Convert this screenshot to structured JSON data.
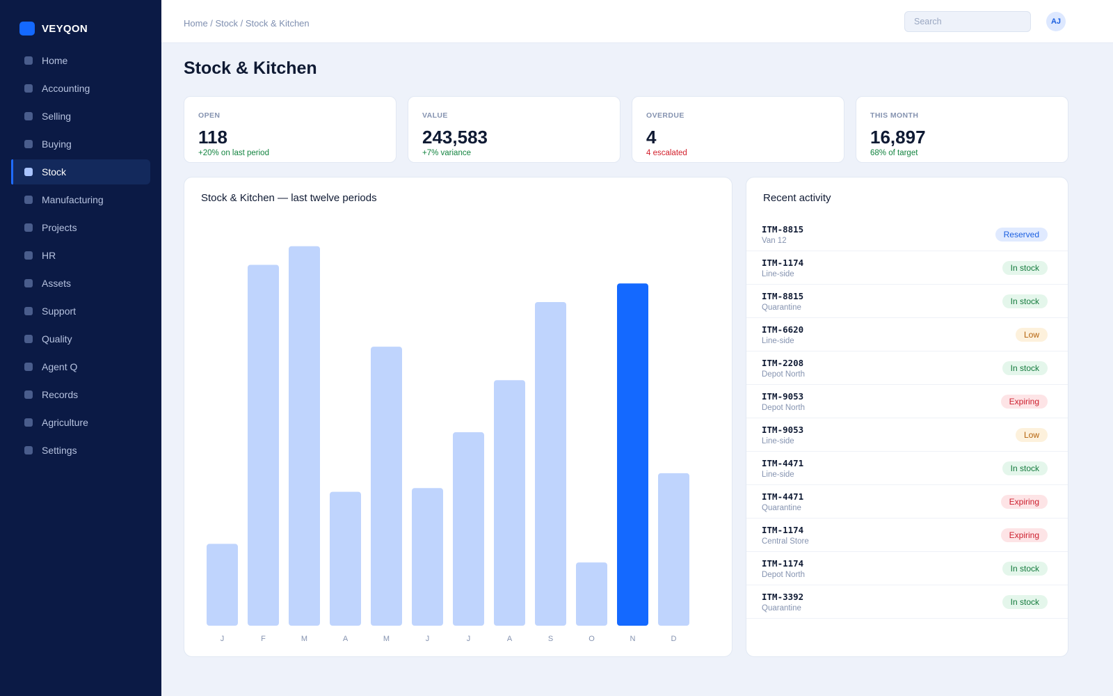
{
  "app": {
    "name": "VEYQON",
    "accent": "#1469ff",
    "sidebar_bg": "#0b1a45"
  },
  "sidebar": {
    "items": [
      {
        "label": "Home",
        "icon": "home-icon",
        "active": false
      },
      {
        "label": "Accounting",
        "icon": "accounting-icon",
        "active": false
      },
      {
        "label": "Selling",
        "icon": "selling-icon",
        "active": false
      },
      {
        "label": "Buying",
        "icon": "buying-icon",
        "active": false
      },
      {
        "label": "Stock",
        "icon": "stock-icon",
        "active": true
      },
      {
        "label": "Manufacturing",
        "icon": "manufacturing-icon",
        "active": false
      },
      {
        "label": "Projects",
        "icon": "projects-icon",
        "active": false
      },
      {
        "label": "HR",
        "icon": "hr-icon",
        "active": false
      },
      {
        "label": "Assets",
        "icon": "assets-icon",
        "active": false
      },
      {
        "label": "Support",
        "icon": "support-icon",
        "active": false
      },
      {
        "label": "Quality",
        "icon": "quality-icon",
        "active": false
      },
      {
        "label": "Agent Q",
        "icon": "agent-icon",
        "active": false
      },
      {
        "label": "Records",
        "icon": "records-icon",
        "active": false
      },
      {
        "label": "Agriculture",
        "icon": "agriculture-icon",
        "active": false
      },
      {
        "label": "Settings",
        "icon": "settings-icon",
        "active": false
      }
    ]
  },
  "header": {
    "breadcrumb": "Home / Stock / Stock & Kitchen",
    "search_placeholder": "Search",
    "avatar_initials": "AJ"
  },
  "page": {
    "title": "Stock & Kitchen"
  },
  "kpis": [
    {
      "label": "OPEN",
      "value": "118",
      "sub": "+20% on last period",
      "tone": "pos"
    },
    {
      "label": "VALUE",
      "value": "243,583",
      "sub": "+7% variance",
      "tone": "pos"
    },
    {
      "label": "OVERDUE",
      "value": "4",
      "sub": "4 escalated",
      "tone": "neg"
    },
    {
      "label": "THIS MONTH",
      "value": "16,897",
      "sub": "68% of target",
      "tone": "pos"
    }
  ],
  "chart": {
    "title": "Stock & Kitchen — last twelve periods"
  },
  "chart_data": {
    "type": "bar",
    "categories": [
      "J",
      "F",
      "M",
      "A",
      "M",
      "J",
      "J",
      "A",
      "S",
      "O",
      "N",
      "D"
    ],
    "values": [
      22,
      97,
      102,
      36,
      75,
      37,
      52,
      66,
      87,
      17,
      92,
      41
    ],
    "ylim": [
      0,
      110
    ],
    "highlight_index": 10,
    "bar_color": "#bfd4fd",
    "highlight_color": "#1469ff",
    "grid": false,
    "legend": "none"
  },
  "activity": {
    "title": "Recent activity",
    "rows": [
      {
        "id": "ITM-8815",
        "location": "Van 12",
        "status": "Reserved",
        "kind": "reserved"
      },
      {
        "id": "ITM-1174",
        "location": "Line-side",
        "status": "In stock",
        "kind": "instock"
      },
      {
        "id": "ITM-8815",
        "location": "Quarantine",
        "status": "In stock",
        "kind": "instock"
      },
      {
        "id": "ITM-6620",
        "location": "Line-side",
        "status": "Low",
        "kind": "low"
      },
      {
        "id": "ITM-2208",
        "location": "Depot North",
        "status": "In stock",
        "kind": "instock"
      },
      {
        "id": "ITM-9053",
        "location": "Depot North",
        "status": "Expiring",
        "kind": "expiring"
      },
      {
        "id": "ITM-9053",
        "location": "Line-side",
        "status": "Low",
        "kind": "low"
      },
      {
        "id": "ITM-4471",
        "location": "Line-side",
        "status": "In stock",
        "kind": "instock"
      },
      {
        "id": "ITM-4471",
        "location": "Quarantine",
        "status": "Expiring",
        "kind": "expiring"
      },
      {
        "id": "ITM-1174",
        "location": "Central Store",
        "status": "Expiring",
        "kind": "expiring"
      },
      {
        "id": "ITM-1174",
        "location": "Depot North",
        "status": "In stock",
        "kind": "instock"
      },
      {
        "id": "ITM-3392",
        "location": "Quarantine",
        "status": "In stock",
        "kind": "instock"
      }
    ]
  }
}
